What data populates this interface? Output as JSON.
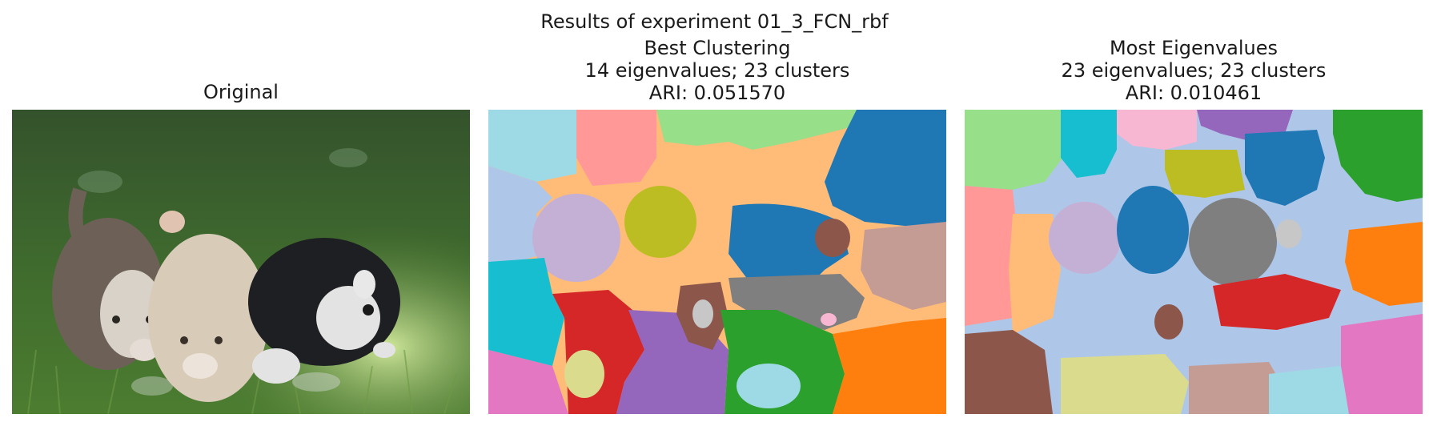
{
  "suptitle": "Results of experiment 01_3_FCN_rbf",
  "panels": [
    {
      "title_lines": [
        "Original"
      ]
    },
    {
      "title_lines": [
        "Best Clustering",
        "14 eigenvalues; 23 clusters",
        "ARI: 0.051570"
      ]
    },
    {
      "title_lines": [
        "Most Eigenvalues",
        "23 eigenvalues; 23 clusters",
        "ARI: 0.010461"
      ]
    }
  ],
  "chart_data": [
    {
      "type": "image",
      "title": "Original",
      "image_subject": "three husky puppies lying in green grass"
    },
    {
      "type": "heatmap",
      "title": "Best Clustering",
      "eigenvalues": 14,
      "clusters": 23,
      "ari": 0.05157
    },
    {
      "type": "heatmap",
      "title": "Most Eigenvalues",
      "eigenvalues": 23,
      "clusters": 23,
      "ari": 0.010461
    }
  ],
  "colors": {
    "tab_blue": "#1f77b4",
    "tab_orange": "#ff7f0e",
    "tab_green": "#2ca02c",
    "tab_red": "#d62728",
    "tab_purple": "#9467bd",
    "tab_brown": "#8c564b",
    "tab_pink": "#e377c2",
    "tab_gray": "#7f7f7f",
    "tab_olive": "#bcbd22",
    "tab_cyan": "#17becf",
    "light_blue": "#aec7e8",
    "light_orange": "#ffbb78",
    "light_green": "#98df8a",
    "light_red": "#ff9896",
    "light_purple": "#c5b0d5",
    "light_brown": "#c49c94",
    "light_pink": "#f7b6d2",
    "light_gray": "#c7c7c7",
    "light_olive": "#dbdb8d",
    "light_cyan": "#9edae5"
  }
}
